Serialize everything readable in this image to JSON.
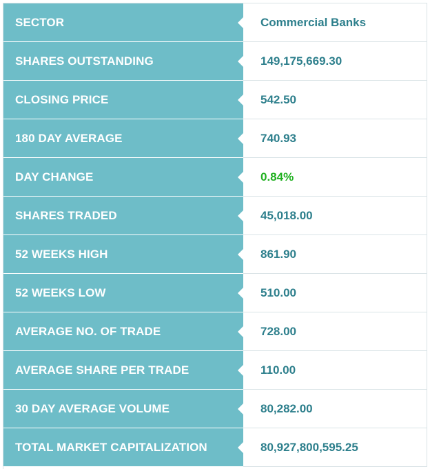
{
  "colors": {
    "label_background": "#6ebdc8",
    "label_text": "#ffffff",
    "value_text": "#2d7f8c",
    "positive_change": "#20b020"
  },
  "rows": [
    {
      "label": "SECTOR",
      "value": "Commercial Banks"
    },
    {
      "label": "SHARES OUTSTANDING",
      "value": "149,175,669.30"
    },
    {
      "label": "CLOSING PRICE",
      "value": "542.50"
    },
    {
      "label": "180 DAY AVERAGE",
      "value": "740.93"
    },
    {
      "label": "DAY CHANGE",
      "value": "0.84%"
    },
    {
      "label": "SHARES TRADED",
      "value": "45,018.00"
    },
    {
      "label": "52 WEEKS HIGH",
      "value": "861.90"
    },
    {
      "label": "52 WEEKS LOW",
      "value": "510.00"
    },
    {
      "label": "AVERAGE NO. OF TRADE",
      "value": "728.00"
    },
    {
      "label": "AVERAGE SHARE PER TRADE",
      "value": "110.00"
    },
    {
      "label": "30 DAY AVERAGE VOLUME",
      "value": "80,282.00"
    },
    {
      "label": "TOTAL MARKET CAPITALIZATION",
      "value": "80,927,800,595.25"
    }
  ]
}
